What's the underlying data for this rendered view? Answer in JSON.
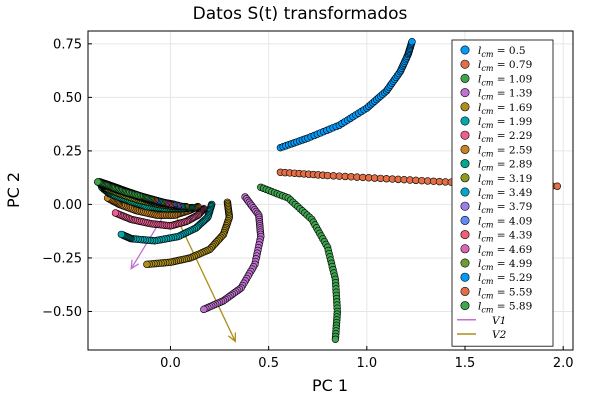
{
  "chart_data": {
    "type": "scatter",
    "title": "Datos S(t) transformados",
    "xlabel": "PC 1",
    "ylabel": "PC 2",
    "xlim": [
      -0.42,
      2.05
    ],
    "ylim": [
      -0.68,
      0.81
    ],
    "x_ticks": [
      0.0,
      0.5,
      1.0,
      1.5,
      2.0
    ],
    "x_tick_labels": [
      "0.0",
      "0.5",
      "1.0",
      "1.5",
      "2.0"
    ],
    "y_ticks": [
      -0.5,
      -0.25,
      0.0,
      0.25,
      0.5,
      0.75
    ],
    "y_tick_labels": [
      "−0.50",
      "−0.25",
      "0.00",
      "0.25",
      "0.50",
      "0.75"
    ],
    "grid": true,
    "legend_position": "top-right",
    "series": [
      {
        "name": "l_cm = 0.5",
        "label_var": "l",
        "label_sub": "cm",
        "label_value": "0.5",
        "color": "#009AFA",
        "points": [
          [
            0.56,
            0.265
          ],
          [
            0.7,
            0.31
          ],
          [
            0.86,
            0.37
          ],
          [
            1.0,
            0.45
          ],
          [
            1.1,
            0.53
          ],
          [
            1.17,
            0.62
          ],
          [
            1.21,
            0.7
          ],
          [
            1.23,
            0.76
          ]
        ]
      },
      {
        "name": "l_cm = 0.79",
        "label_var": "l",
        "label_sub": "cm",
        "label_value": "0.79",
        "color": "#E36F47",
        "points": [
          [
            0.56,
            0.15
          ],
          [
            0.8,
            0.135
          ],
          [
            1.1,
            0.12
          ],
          [
            1.4,
            0.105
          ],
          [
            1.7,
            0.095
          ],
          [
            1.97,
            0.085
          ]
        ]
      },
      {
        "name": "l_cm = 1.09",
        "label_var": "l",
        "label_sub": "cm",
        "label_value": "1.09",
        "color": "#3EA44E",
        "points": [
          [
            0.46,
            0.08
          ],
          [
            0.6,
            0.03
          ],
          [
            0.72,
            -0.07
          ],
          [
            0.8,
            -0.2
          ],
          [
            0.84,
            -0.35
          ],
          [
            0.85,
            -0.5
          ],
          [
            0.84,
            -0.63
          ]
        ]
      },
      {
        "name": "l_cm = 1.39",
        "label_var": "l",
        "label_sub": "cm",
        "label_value": "1.39",
        "color": "#C271D2",
        "points": [
          [
            0.38,
            0.035
          ],
          [
            0.45,
            -0.05
          ],
          [
            0.46,
            -0.15
          ],
          [
            0.43,
            -0.28
          ],
          [
            0.36,
            -0.39
          ],
          [
            0.27,
            -0.45
          ],
          [
            0.17,
            -0.49
          ]
        ]
      },
      {
        "name": "l_cm = 1.69",
        "label_var": "l",
        "label_sub": "cm",
        "label_value": "1.69",
        "color": "#AC8E18",
        "points": [
          [
            0.29,
            0.01
          ],
          [
            0.3,
            -0.06
          ],
          [
            0.27,
            -0.14
          ],
          [
            0.2,
            -0.21
          ],
          [
            0.1,
            -0.25
          ],
          [
            0.0,
            -0.27
          ],
          [
            -0.12,
            -0.28
          ]
        ]
      },
      {
        "name": "l_cm = 1.99",
        "label_var": "l",
        "label_sub": "cm",
        "label_value": "1.99",
        "color": "#00A9AD",
        "points": [
          [
            0.21,
            0.0
          ],
          [
            0.19,
            -0.06
          ],
          [
            0.13,
            -0.11
          ],
          [
            0.04,
            -0.15
          ],
          [
            -0.08,
            -0.17
          ],
          [
            -0.2,
            -0.16
          ],
          [
            -0.25,
            -0.14
          ]
        ]
      },
      {
        "name": "l_cm = 2.29",
        "label_var": "l",
        "label_sub": "cm",
        "label_value": "2.29",
        "color": "#ED5E93",
        "points": [
          [
            0.17,
            -0.02
          ],
          [
            0.14,
            -0.05
          ],
          [
            0.08,
            -0.08
          ],
          [
            0.0,
            -0.1
          ],
          [
            -0.1,
            -0.09
          ],
          [
            -0.2,
            -0.07
          ],
          [
            -0.28,
            -0.04
          ]
        ]
      },
      {
        "name": "l_cm = 2.59",
        "label_var": "l",
        "label_sub": "cm",
        "label_value": "2.59",
        "color": "#C68225",
        "points": [
          [
            0.14,
            -0.01
          ],
          [
            0.09,
            -0.03
          ],
          [
            0.02,
            -0.05
          ],
          [
            -0.07,
            -0.05
          ],
          [
            -0.17,
            -0.03
          ],
          [
            -0.26,
            0.0
          ],
          [
            -0.32,
            0.03
          ]
        ]
      },
      {
        "name": "l_cm = 2.89",
        "label_var": "l",
        "label_sub": "cm",
        "label_value": "2.89",
        "color": "#00A98D",
        "points": [
          [
            0.11,
            -0.015
          ],
          [
            0.06,
            -0.02
          ],
          [
            -0.02,
            -0.02
          ],
          [
            -0.12,
            -0.01
          ],
          [
            -0.22,
            0.02
          ],
          [
            -0.31,
            0.05
          ],
          [
            -0.35,
            0.08
          ]
        ]
      },
      {
        "name": "l_cm = 3.19",
        "label_var": "l",
        "label_sub": "cm",
        "label_value": "3.19",
        "color": "#8E971E",
        "points": [
          [
            0.08,
            -0.01
          ],
          [
            0.02,
            -0.01
          ],
          [
            -0.06,
            0.0
          ],
          [
            -0.16,
            0.02
          ],
          [
            -0.26,
            0.05
          ],
          [
            -0.34,
            0.08
          ],
          [
            -0.36,
            0.1
          ]
        ]
      },
      {
        "name": "l_cm = 3.49",
        "label_var": "l",
        "label_sub": "cm",
        "label_value": "3.49",
        "color": "#00A8CB",
        "points": [
          [
            0.06,
            -0.01
          ],
          [
            0.0,
            0.0
          ],
          [
            -0.08,
            0.01
          ],
          [
            -0.18,
            0.04
          ],
          [
            -0.28,
            0.07
          ],
          [
            -0.36,
            0.1
          ]
        ]
      },
      {
        "name": "l_cm = 3.79",
        "label_var": "l",
        "label_sub": "cm",
        "label_value": "3.79",
        "color": "#9B7FE9",
        "points": [
          [
            0.04,
            -0.005
          ],
          [
            -0.02,
            0.005
          ],
          [
            -0.1,
            0.02
          ],
          [
            -0.2,
            0.05
          ],
          [
            -0.3,
            0.08
          ],
          [
            -0.36,
            0.1
          ]
        ]
      },
      {
        "name": "l_cm = 4.09",
        "label_var": "l",
        "label_sub": "cm",
        "label_value": "4.09",
        "color": "#608CF6",
        "points": [
          [
            0.02,
            0.0
          ],
          [
            -0.04,
            0.01
          ],
          [
            -0.12,
            0.03
          ],
          [
            -0.22,
            0.06
          ],
          [
            -0.31,
            0.09
          ],
          [
            -0.36,
            0.105
          ]
        ]
      },
      {
        "name": "l_cm = 4.39",
        "label_var": "l",
        "label_sub": "cm",
        "label_value": "4.39",
        "color": "#F05F73",
        "points": [
          [
            0.0,
            0.0
          ],
          [
            -0.06,
            0.015
          ],
          [
            -0.14,
            0.035
          ],
          [
            -0.24,
            0.065
          ],
          [
            -0.32,
            0.09
          ],
          [
            -0.36,
            0.105
          ]
        ]
      },
      {
        "name": "l_cm = 4.69",
        "label_var": "l",
        "label_sub": "cm",
        "label_value": "4.69",
        "color": "#DD64B5",
        "points": [
          [
            -0.02,
            0.005
          ],
          [
            -0.08,
            0.02
          ],
          [
            -0.16,
            0.04
          ],
          [
            -0.25,
            0.07
          ],
          [
            -0.33,
            0.095
          ],
          [
            -0.36,
            0.105
          ]
        ]
      },
      {
        "name": "l_cm = 4.99",
        "label_var": "l",
        "label_sub": "cm",
        "label_value": "4.99",
        "color": "#6B9E32",
        "points": [
          [
            -0.04,
            0.01
          ],
          [
            -0.1,
            0.025
          ],
          [
            -0.18,
            0.045
          ],
          [
            -0.27,
            0.075
          ],
          [
            -0.34,
            0.095
          ],
          [
            -0.37,
            0.105
          ]
        ]
      },
      {
        "name": "l_cm = 5.29",
        "label_var": "l",
        "label_sub": "cm",
        "label_value": "5.29",
        "color": "#009AFA",
        "points": [
          [
            -0.06,
            0.015
          ],
          [
            -0.12,
            0.03
          ],
          [
            -0.2,
            0.05
          ],
          [
            -0.28,
            0.08
          ],
          [
            -0.35,
            0.1
          ]
        ]
      },
      {
        "name": "l_cm = 5.59",
        "label_var": "l",
        "label_sub": "cm",
        "label_value": "5.59",
        "color": "#E36F47",
        "points": [
          [
            -0.08,
            0.02
          ],
          [
            -0.14,
            0.035
          ],
          [
            -0.22,
            0.055
          ],
          [
            -0.3,
            0.085
          ],
          [
            -0.36,
            0.1
          ]
        ]
      },
      {
        "name": "l_cm = 5.89",
        "label_var": "l",
        "label_sub": "cm",
        "label_value": "5.89",
        "color": "#3EA44E",
        "points": [
          [
            -0.1,
            0.025
          ],
          [
            -0.16,
            0.04
          ],
          [
            -0.24,
            0.06
          ],
          [
            -0.31,
            0.085
          ],
          [
            -0.37,
            0.105
          ]
        ]
      }
    ],
    "vectors": [
      {
        "name": "V1",
        "color": "#C271D2",
        "from": [
          0.0,
          0.0
        ],
        "to": [
          -0.2,
          -0.3
        ]
      },
      {
        "name": "V2",
        "color": "#AC8E18",
        "from": [
          0.0,
          0.0
        ],
        "to": [
          0.33,
          -0.64
        ]
      }
    ]
  }
}
